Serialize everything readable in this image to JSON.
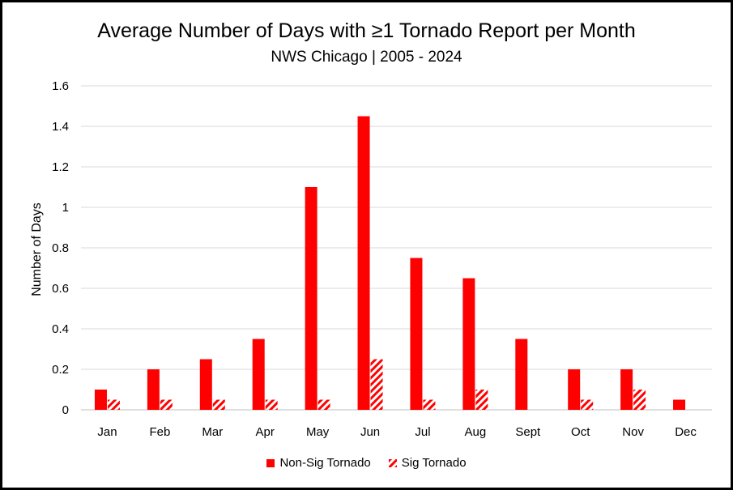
{
  "colors": {
    "non_sig": "#ff0000",
    "sig": "#ff0000",
    "grid": "#d9d9d9"
  },
  "chart_data": {
    "type": "bar",
    "title": "Average Number of Days with ≥1 Tornado Report per Month",
    "subtitle": "NWS Chicago | 2005 - 2024",
    "ylabel": "Number of Days",
    "xlabel": "",
    "ylim": [
      0,
      1.6
    ],
    "yticks": [
      "0",
      "0.2",
      "0.4",
      "0.6",
      "0.8",
      "1",
      "1.2",
      "1.4",
      "1.6"
    ],
    "grid": true,
    "legend_position": "bottom",
    "categories": [
      "Jan",
      "Feb",
      "Mar",
      "Apr",
      "May",
      "Jun",
      "Jul",
      "Aug",
      "Sept",
      "Oct",
      "Nov",
      "Dec"
    ],
    "series": [
      {
        "name": "Non-Sig Tornado",
        "pattern": "solid",
        "values": [
          0.1,
          0.2,
          0.25,
          0.35,
          1.1,
          1.45,
          0.75,
          0.65,
          0.35,
          0.2,
          0.2,
          0.05
        ]
      },
      {
        "name": "Sig Tornado",
        "pattern": "diagonal-stripes",
        "values": [
          0.05,
          0.05,
          0.05,
          0.05,
          0.05,
          0.25,
          0.05,
          0.1,
          0,
          0.05,
          0.1,
          0
        ]
      }
    ]
  }
}
